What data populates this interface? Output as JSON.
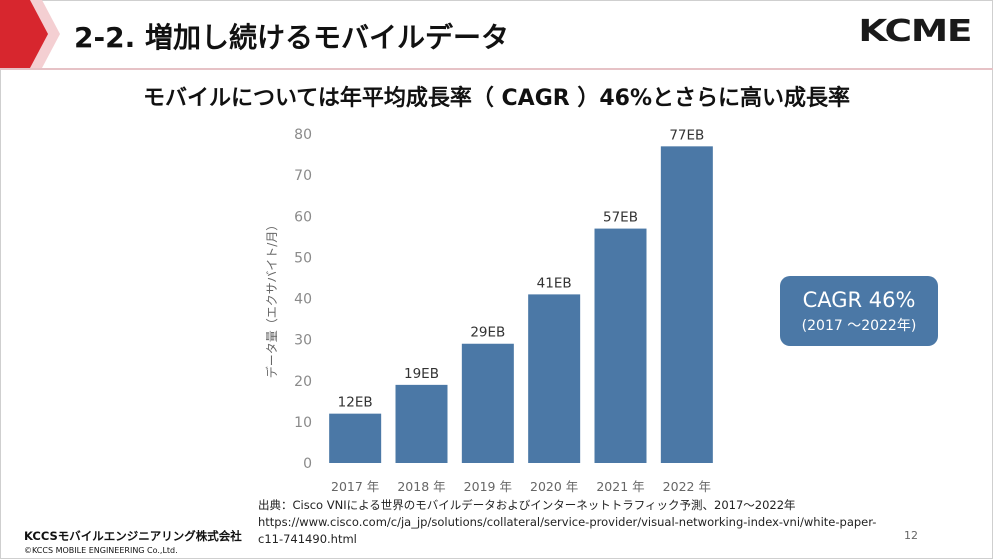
{
  "slide": {
    "title": "2-2. 増加し続けるモバイルデータ",
    "logo": "KCME",
    "subtitle": "モバイルについては年平均成長率（ CAGR ）46%とさらに高い成長率",
    "page_number": "12"
  },
  "cagr": {
    "main": "CAGR 46%",
    "sub": "(2017 ～2022年)"
  },
  "source": {
    "line1": "出典：Cisco VNIによる世界のモバイルデータおよびインターネットトラフィック予測、2017～2022年",
    "line2": "https://www.cisco.com/c/ja_jp/solutions/collateral/service-provider/visual-networking-index-vni/white-paper-",
    "line3": "c11-741490.html"
  },
  "footer": {
    "company": "KCCSモバイルエンジニアリング株式会社",
    "copyright": "©KCCS MOBILE ENGINEERING Co.,Ltd."
  },
  "colors": {
    "bar": "#4b78a6",
    "header_accent": "#d7262e",
    "cagr_box": "#4b78a6"
  },
  "chart_data": {
    "type": "bar",
    "categories": [
      "2017 年",
      "2018 年",
      "2019 年",
      "2020 年",
      "2021 年",
      "2022 年"
    ],
    "values": [
      12,
      19,
      29,
      41,
      57,
      77
    ],
    "data_labels": [
      "12EB",
      "19EB",
      "29EB",
      "41EB",
      "57EB",
      "77EB"
    ],
    "ylabel": "データ量（エクサバイト/月）",
    "ylim": [
      0,
      80
    ],
    "yticks": [
      0,
      10,
      20,
      30,
      40,
      50,
      60,
      70,
      80
    ],
    "grid": false
  }
}
